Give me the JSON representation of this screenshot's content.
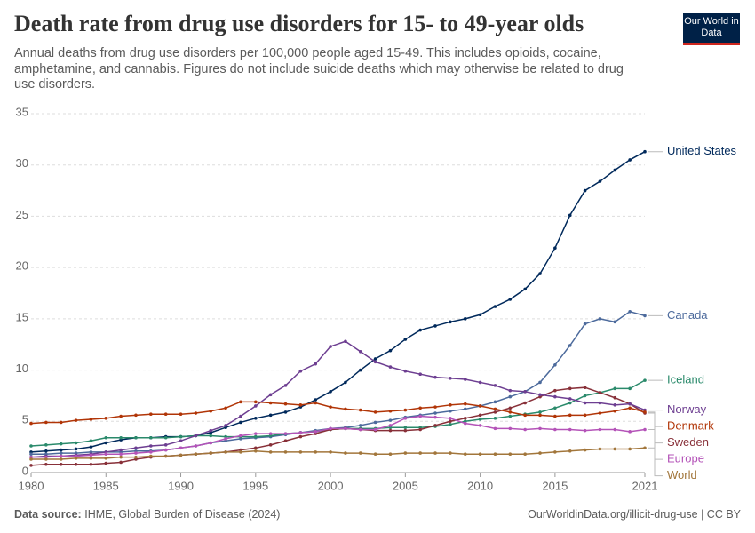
{
  "header": {
    "title": "Death rate from drug use disorders for 15- to 49-year olds",
    "subtitle": "Annual deaths from drug use disorders per 100,000 people aged 15-49. This includes opioids, cocaine, amphetamine, and cannabis. Figures do not include suicide deaths which may otherwise be related to drug use disorders.",
    "logo": "Our World in Data"
  },
  "chart_data": {
    "type": "line",
    "x": [
      1980,
      1981,
      1982,
      1983,
      1984,
      1985,
      1986,
      1987,
      1988,
      1989,
      1990,
      1991,
      1992,
      1993,
      1994,
      1995,
      1996,
      1997,
      1998,
      1999,
      2000,
      2001,
      2002,
      2003,
      2004,
      2005,
      2006,
      2007,
      2008,
      2009,
      2010,
      2011,
      2012,
      2013,
      2014,
      2015,
      2016,
      2017,
      2018,
      2019,
      2020,
      2021
    ],
    "xlim": [
      1980,
      2021
    ],
    "xticks": [
      1980,
      1985,
      1990,
      1995,
      2000,
      2005,
      2010,
      2015,
      2021
    ],
    "ylim": [
      0,
      35
    ],
    "yticks": [
      0,
      5,
      10,
      15,
      20,
      25,
      30,
      35
    ],
    "grid": true,
    "series": [
      {
        "name": "United States",
        "color": "#00295b",
        "values": [
          2.0,
          2.1,
          2.2,
          2.3,
          2.5,
          2.9,
          3.2,
          3.4,
          3.4,
          3.5,
          3.5,
          3.6,
          3.9,
          4.4,
          4.9,
          5.3,
          5.6,
          5.9,
          6.4,
          7.1,
          7.9,
          8.8,
          10.0,
          11.1,
          11.9,
          13.0,
          13.9,
          14.3,
          14.7,
          15.0,
          15.4,
          16.2,
          16.9,
          17.9,
          19.4,
          21.9,
          25.1,
          27.5,
          28.4,
          29.5,
          30.5,
          31.3
        ]
      },
      {
        "name": "Canada",
        "color": "#4c6a9c",
        "values": [
          1.8,
          1.8,
          1.9,
          1.9,
          2.0,
          2.0,
          2.0,
          2.1,
          2.1,
          2.2,
          2.4,
          2.6,
          2.9,
          3.1,
          3.3,
          3.4,
          3.5,
          3.7,
          3.9,
          4.1,
          4.3,
          4.4,
          4.6,
          4.9,
          5.1,
          5.4,
          5.6,
          5.8,
          6.0,
          6.2,
          6.5,
          6.9,
          7.4,
          7.9,
          8.8,
          10.5,
          12.4,
          14.5,
          15.0,
          14.7,
          15.7,
          15.3
        ]
      },
      {
        "name": "Iceland",
        "color": "#2a8a6b",
        "values": [
          2.6,
          2.7,
          2.8,
          2.9,
          3.1,
          3.4,
          3.4,
          3.4,
          3.4,
          3.4,
          3.5,
          3.6,
          3.6,
          3.5,
          3.5,
          3.5,
          3.6,
          3.8,
          3.9,
          4.0,
          4.2,
          4.3,
          4.3,
          4.3,
          4.4,
          4.4,
          4.4,
          4.5,
          4.7,
          5.0,
          5.2,
          5.3,
          5.5,
          5.7,
          5.9,
          6.3,
          6.8,
          7.5,
          7.8,
          8.2,
          8.2,
          9.0
        ]
      },
      {
        "name": "Sweden",
        "color": "#883039",
        "values": [
          0.7,
          0.8,
          0.8,
          0.8,
          0.8,
          0.9,
          1.0,
          1.3,
          1.5,
          1.6,
          1.7,
          1.8,
          1.9,
          2.0,
          2.2,
          2.4,
          2.7,
          3.1,
          3.5,
          3.8,
          4.2,
          4.3,
          4.2,
          4.1,
          4.1,
          4.1,
          4.2,
          4.6,
          5.0,
          5.3,
          5.6,
          5.9,
          6.3,
          6.8,
          7.4,
          8.0,
          8.2,
          8.3,
          7.8,
          7.3,
          6.7,
          5.8
        ]
      },
      {
        "name": "Norway",
        "color": "#6d3e91",
        "values": [
          1.5,
          1.6,
          1.6,
          1.7,
          1.8,
          2.0,
          2.2,
          2.4,
          2.6,
          2.7,
          3.1,
          3.6,
          4.1,
          4.6,
          5.5,
          6.5,
          7.6,
          8.5,
          9.9,
          10.6,
          12.3,
          12.8,
          11.8,
          10.8,
          10.3,
          9.9,
          9.6,
          9.3,
          9.2,
          9.1,
          8.8,
          8.5,
          8.0,
          7.9,
          7.6,
          7.4,
          7.2,
          6.8,
          6.8,
          6.6,
          6.7,
          6.1
        ]
      },
      {
        "name": "Denmark",
        "color": "#b13507",
        "values": [
          4.8,
          4.9,
          4.9,
          5.1,
          5.2,
          5.3,
          5.5,
          5.6,
          5.7,
          5.7,
          5.7,
          5.8,
          6.0,
          6.3,
          6.9,
          6.9,
          6.8,
          6.7,
          6.6,
          6.8,
          6.4,
          6.2,
          6.1,
          5.9,
          6.0,
          6.1,
          6.3,
          6.4,
          6.6,
          6.7,
          6.5,
          6.2,
          5.9,
          5.6,
          5.6,
          5.5,
          5.6,
          5.6,
          5.8,
          6.0,
          6.3,
          5.9
        ]
      },
      {
        "name": "Europe",
        "color": "#b453b8",
        "values": [
          1.5,
          1.5,
          1.6,
          1.6,
          1.7,
          1.8,
          1.8,
          1.9,
          2.0,
          2.2,
          2.4,
          2.6,
          2.9,
          3.3,
          3.6,
          3.8,
          3.8,
          3.8,
          3.9,
          4.0,
          4.3,
          4.3,
          4.2,
          4.2,
          4.6,
          5.3,
          5.5,
          5.4,
          5.3,
          4.8,
          4.6,
          4.3,
          4.3,
          4.2,
          4.3,
          4.2,
          4.2,
          4.1,
          4.2,
          4.2,
          4.0,
          4.2
        ]
      },
      {
        "name": "World",
        "color": "#a2763b",
        "values": [
          1.3,
          1.3,
          1.3,
          1.4,
          1.4,
          1.4,
          1.5,
          1.5,
          1.6,
          1.6,
          1.7,
          1.8,
          1.9,
          2.0,
          2.0,
          2.1,
          2.0,
          2.0,
          2.0,
          2.0,
          2.0,
          1.9,
          1.9,
          1.8,
          1.8,
          1.9,
          1.9,
          1.9,
          1.9,
          1.8,
          1.8,
          1.8,
          1.8,
          1.8,
          1.9,
          2.0,
          2.1,
          2.2,
          2.3,
          2.3,
          2.3,
          2.4
        ]
      }
    ]
  },
  "footer": {
    "source_label": "Data source:",
    "source": "IHME, Global Burden of Disease (2024)",
    "url": "OurWorldinData.org/illicit-drug-use | CC BY"
  }
}
